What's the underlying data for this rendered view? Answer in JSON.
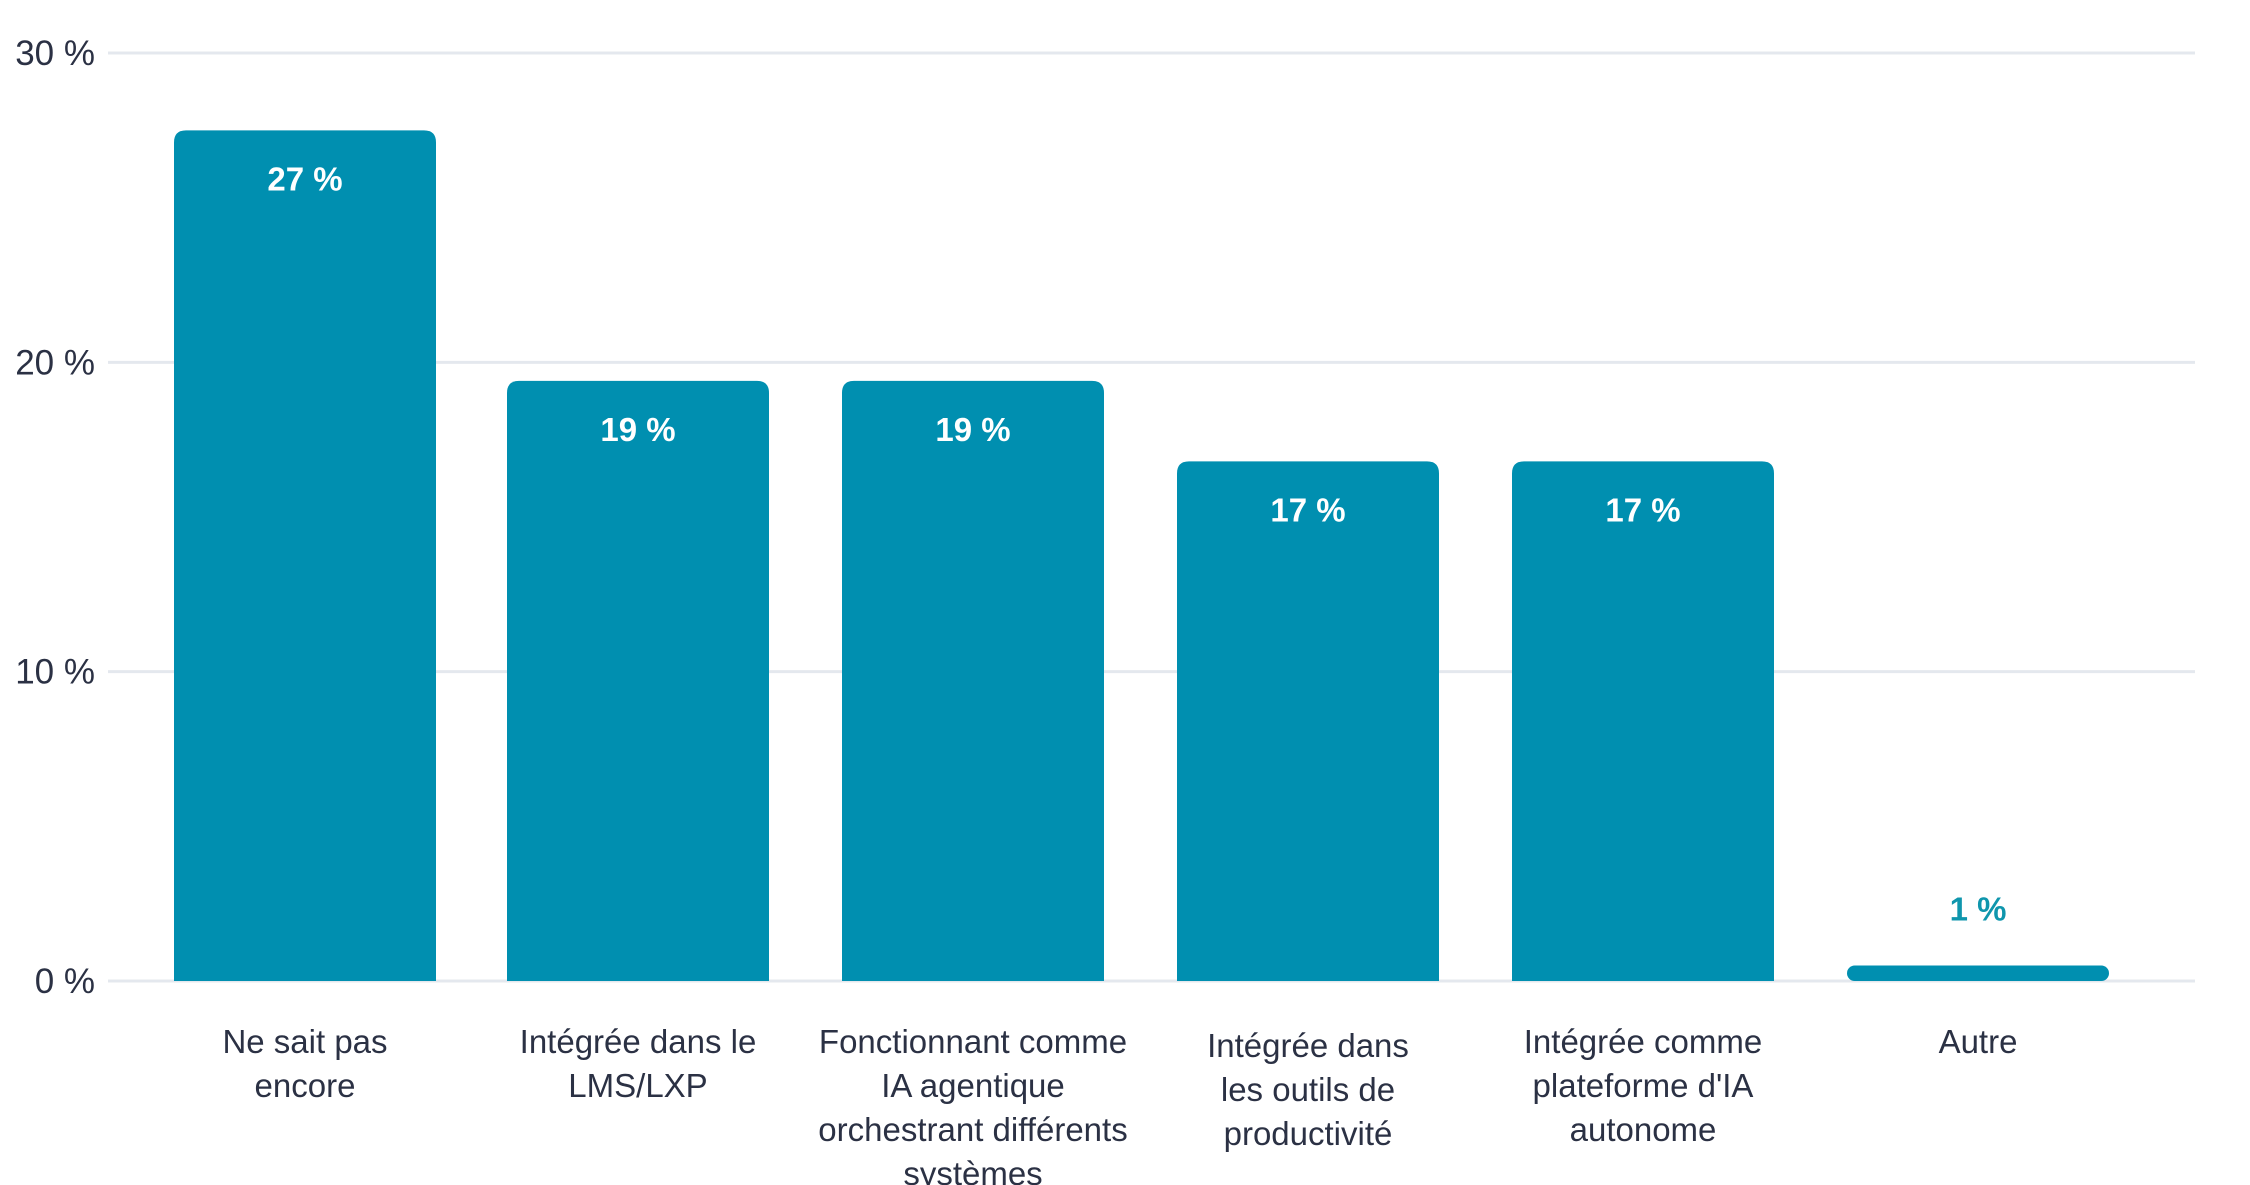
{
  "chart_data": {
    "type": "bar",
    "title": "",
    "xlabel": "",
    "ylabel": "",
    "ylim": [
      0,
      30
    ],
    "yticks": [
      {
        "value": 0,
        "label": "0 %"
      },
      {
        "value": 10,
        "label": "10 %"
      },
      {
        "value": 20,
        "label": "20 %"
      },
      {
        "value": 30,
        "label": "30 %"
      }
    ],
    "grid": true,
    "categories": [
      {
        "id": "ne-sait-pas",
        "lines": [
          "Ne sait pas",
          "encore"
        ]
      },
      {
        "id": "lms-lxp",
        "lines": [
          "Intégrée dans le",
          "LMS/LXP"
        ]
      },
      {
        "id": "ia-agentique",
        "lines": [
          "Fonctionnant comme",
          "IA agentique",
          "orchestrant différents",
          "systèmes"
        ]
      },
      {
        "id": "outils-productivite",
        "lines": [
          "Intégrée dans",
          "les outils de",
          "productivité"
        ]
      },
      {
        "id": "plateforme-ia",
        "lines": [
          "Intégrée comme",
          "plateforme d'IA",
          "autonome"
        ]
      },
      {
        "id": "autre",
        "lines": [
          "Autre"
        ]
      }
    ],
    "values": [
      27.5,
      19.4,
      19.4,
      16.8,
      16.8,
      0.5
    ],
    "value_labels": [
      "27 %",
      "19 %",
      "19 %",
      "17 %",
      "17 %",
      "1 %"
    ],
    "colors": {
      "bar": "#008fb0",
      "label_inside": "#ffffff",
      "label_outside": "#0f96ad",
      "grid": "#e4e8ee",
      "text": "#2b3144"
    }
  }
}
